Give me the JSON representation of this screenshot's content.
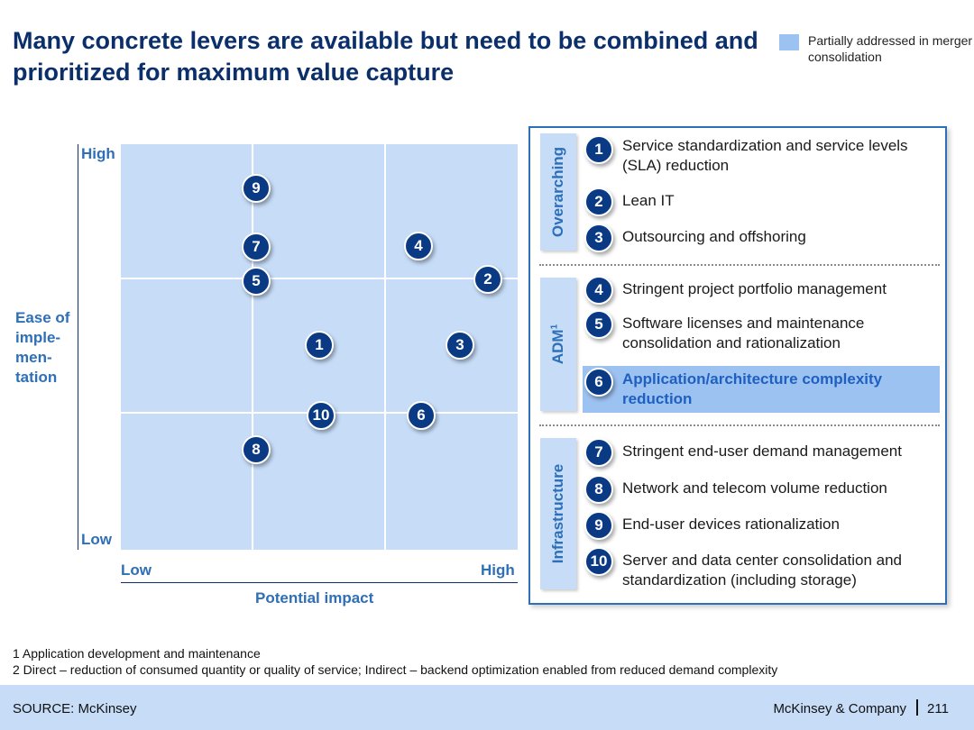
{
  "title": "Many concrete levers are available but need to be combined and prioritized for maximum value capture",
  "legend": {
    "label": "Partially addressed in merger consolidation",
    "color": "#9cc2f2"
  },
  "matrix": {
    "y_high": "High",
    "y_low": "Low",
    "y_title": [
      "Ease of",
      "imple-",
      "men-",
      "tation"
    ],
    "x_low": "Low",
    "x_high": "High",
    "x_title": "Potential impact",
    "bubbles": [
      "9",
      "7",
      "4",
      "5",
      "2",
      "1",
      "3",
      "10",
      "6",
      "8"
    ]
  },
  "categories": [
    {
      "label": "Overarching",
      "sup": ""
    },
    {
      "label": "ADM",
      "sup": "1"
    },
    {
      "label": "Infrastructure",
      "sup": ""
    }
  ],
  "levers": [
    {
      "num": "1",
      "text": "Service standardization and service levels (SLA) reduction",
      "highlight": false
    },
    {
      "num": "2",
      "text": "Lean IT",
      "highlight": false
    },
    {
      "num": "3",
      "text": "Outsourcing and offshoring",
      "highlight": false
    },
    {
      "num": "4",
      "text": "Stringent project portfolio management",
      "highlight": false
    },
    {
      "num": "5",
      "text": "Software licenses and maintenance consolidation and rationalization",
      "highlight": false
    },
    {
      "num": "6",
      "text": "Application/architecture complexity reduction",
      "highlight": true
    },
    {
      "num": "7",
      "text": "Stringent end-user demand management",
      "highlight": false
    },
    {
      "num": "8",
      "text": "Network and telecom volume reduction",
      "highlight": false
    },
    {
      "num": "9",
      "text": "End-user devices rationalization",
      "highlight": false
    },
    {
      "num": "10",
      "text": "Server and data center consolidation and standardization (including storage)",
      "highlight": false
    }
  ],
  "notes": [
    "1 Application development and maintenance",
    "2 Direct – reduction of consumed quantity or quality of service; Indirect – backend optimization enabled from reduced demand complexity"
  ],
  "footer": {
    "source": "SOURCE: McKinsey",
    "company": "McKinsey & Company",
    "page": "211"
  }
}
